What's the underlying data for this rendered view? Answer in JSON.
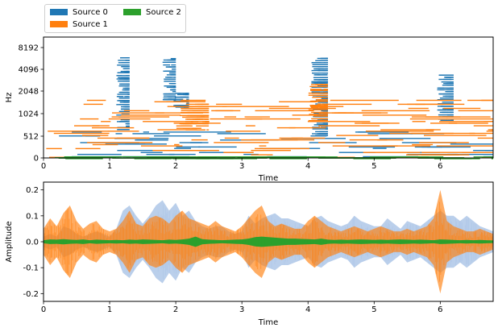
{
  "legend": {
    "items": [
      {
        "label": "Source 0",
        "color": "#1f77b4"
      },
      {
        "label": "Source 1",
        "color": "#ff7f0e"
      },
      {
        "label": "Source 2",
        "color": "#2ca02c"
      }
    ]
  },
  "chart_data": [
    {
      "type": "heatmap",
      "title": "",
      "xlabel": "Time",
      "ylabel": "Hz",
      "xlim": [
        0,
        6.8
      ],
      "x_ticks": [
        "0",
        "1",
        "2",
        "3",
        "4",
        "5",
        "6"
      ],
      "y_scale": "log2",
      "y_ticks": [
        "0",
        "512",
        "1024",
        "2048",
        "4096",
        "8192"
      ],
      "ylim": [
        0,
        11025
      ],
      "series": [
        {
          "name": "Source 0",
          "color": "#1f77b4",
          "regions": [
            [
              1.1,
              1.3,
              600,
              6000
            ],
            [
              1.8,
              2.0,
              1500,
              6000
            ],
            [
              1.95,
              2.2,
              1200,
              2000
            ],
            [
              4.05,
              4.3,
              500,
              6000
            ],
            [
              5.95,
              6.2,
              800,
              3500
            ],
            [
              0.0,
              6.8,
              0,
              600
            ]
          ]
        },
        {
          "name": "Source 1",
          "color": "#ff7f0e",
          "regions": [
            [
              0.0,
              6.8,
              0,
              1600
            ],
            [
              2.0,
              2.5,
              600,
              1400
            ],
            [
              4.0,
              4.3,
              800,
              2600
            ]
          ]
        },
        {
          "name": "Source 2",
          "color": "#2ca02c",
          "regions": [
            [
              0.0,
              6.8,
              0,
              60
            ]
          ]
        }
      ]
    },
    {
      "type": "area",
      "title": "",
      "xlabel": "Time",
      "ylabel": "Amplitude",
      "xlim": [
        0,
        6.8
      ],
      "ylim": [
        -0.23,
        0.23
      ],
      "x_ticks": [
        "0",
        "1",
        "2",
        "3",
        "4",
        "5",
        "6"
      ],
      "y_ticks": [
        "-0.2",
        "-0.1",
        "0.0",
        "0.1",
        "0.2"
      ],
      "x": [
        0,
        0.1,
        0.2,
        0.3,
        0.4,
        0.5,
        0.6,
        0.7,
        0.8,
        0.9,
        1.0,
        1.1,
        1.2,
        1.3,
        1.4,
        1.5,
        1.6,
        1.7,
        1.8,
        1.9,
        2.0,
        2.1,
        2.2,
        2.3,
        2.4,
        2.5,
        2.6,
        2.7,
        2.8,
        2.9,
        3.0,
        3.1,
        3.2,
        3.3,
        3.4,
        3.5,
        3.6,
        3.7,
        3.8,
        3.9,
        4.0,
        4.1,
        4.2,
        4.3,
        4.4,
        4.5,
        4.6,
        4.7,
        4.8,
        4.9,
        5.0,
        5.1,
        5.2,
        5.3,
        5.4,
        5.5,
        5.6,
        5.7,
        5.8,
        5.9,
        6.0,
        6.1,
        6.2,
        6.3,
        6.4,
        6.5,
        6.6,
        6.7,
        6.8
      ],
      "series": [
        {
          "name": "Source 0",
          "color": "#aec7e8",
          "values": [
            0.02,
            0.03,
            0.02,
            0.06,
            0.05,
            0.03,
            0.02,
            0.03,
            0.04,
            0.03,
            0.02,
            0.05,
            0.12,
            0.14,
            0.1,
            0.07,
            0.1,
            0.14,
            0.16,
            0.12,
            0.15,
            0.1,
            0.12,
            0.08,
            0.06,
            0.05,
            0.06,
            0.06,
            0.04,
            0.03,
            0.04,
            0.1,
            0.07,
            0.09,
            0.1,
            0.11,
            0.09,
            0.09,
            0.08,
            0.07,
            0.06,
            0.09,
            0.1,
            0.08,
            0.07,
            0.06,
            0.07,
            0.1,
            0.08,
            0.07,
            0.06,
            0.06,
            0.09,
            0.07,
            0.05,
            0.08,
            0.07,
            0.06,
            0.08,
            0.1,
            0.12,
            0.1,
            0.1,
            0.08,
            0.1,
            0.08,
            0.06,
            0.05,
            0.04
          ]
        },
        {
          "name": "Source 1",
          "color": "#ff7f0e",
          "values": [
            0.05,
            0.09,
            0.06,
            0.11,
            0.14,
            0.08,
            0.05,
            0.07,
            0.08,
            0.05,
            0.04,
            0.05,
            0.08,
            0.12,
            0.07,
            0.06,
            0.09,
            0.1,
            0.09,
            0.07,
            0.1,
            0.12,
            0.09,
            0.08,
            0.07,
            0.06,
            0.08,
            0.06,
            0.05,
            0.04,
            0.06,
            0.09,
            0.12,
            0.14,
            0.08,
            0.06,
            0.07,
            0.06,
            0.05,
            0.05,
            0.08,
            0.1,
            0.08,
            0.06,
            0.05,
            0.04,
            0.05,
            0.06,
            0.05,
            0.04,
            0.05,
            0.06,
            0.05,
            0.04,
            0.04,
            0.05,
            0.04,
            0.05,
            0.06,
            0.09,
            0.2,
            0.08,
            0.06,
            0.05,
            0.04,
            0.04,
            0.05,
            0.04,
            0.03
          ]
        },
        {
          "name": "Source 2",
          "color": "#2ca02c",
          "values": [
            0.006,
            0.009,
            0.008,
            0.01,
            0.008,
            0.007,
            0.009,
            0.006,
            0.008,
            0.007,
            0.006,
            0.007,
            0.006,
            0.008,
            0.007,
            0.009,
            0.008,
            0.007,
            0.006,
            0.008,
            0.007,
            0.009,
            0.012,
            0.02,
            0.01,
            0.008,
            0.007,
            0.006,
            0.007,
            0.008,
            0.009,
            0.012,
            0.018,
            0.02,
            0.018,
            0.016,
            0.014,
            0.012,
            0.012,
            0.011,
            0.01,
            0.009,
            0.012,
            0.008,
            0.007,
            0.008,
            0.007,
            0.008,
            0.009,
            0.008,
            0.007,
            0.008,
            0.007,
            0.008,
            0.009,
            0.008,
            0.007,
            0.008,
            0.007,
            0.006,
            0.009,
            0.008,
            0.007,
            0.006,
            0.007,
            0.006,
            0.007,
            0.006,
            0.005
          ]
        }
      ]
    }
  ]
}
